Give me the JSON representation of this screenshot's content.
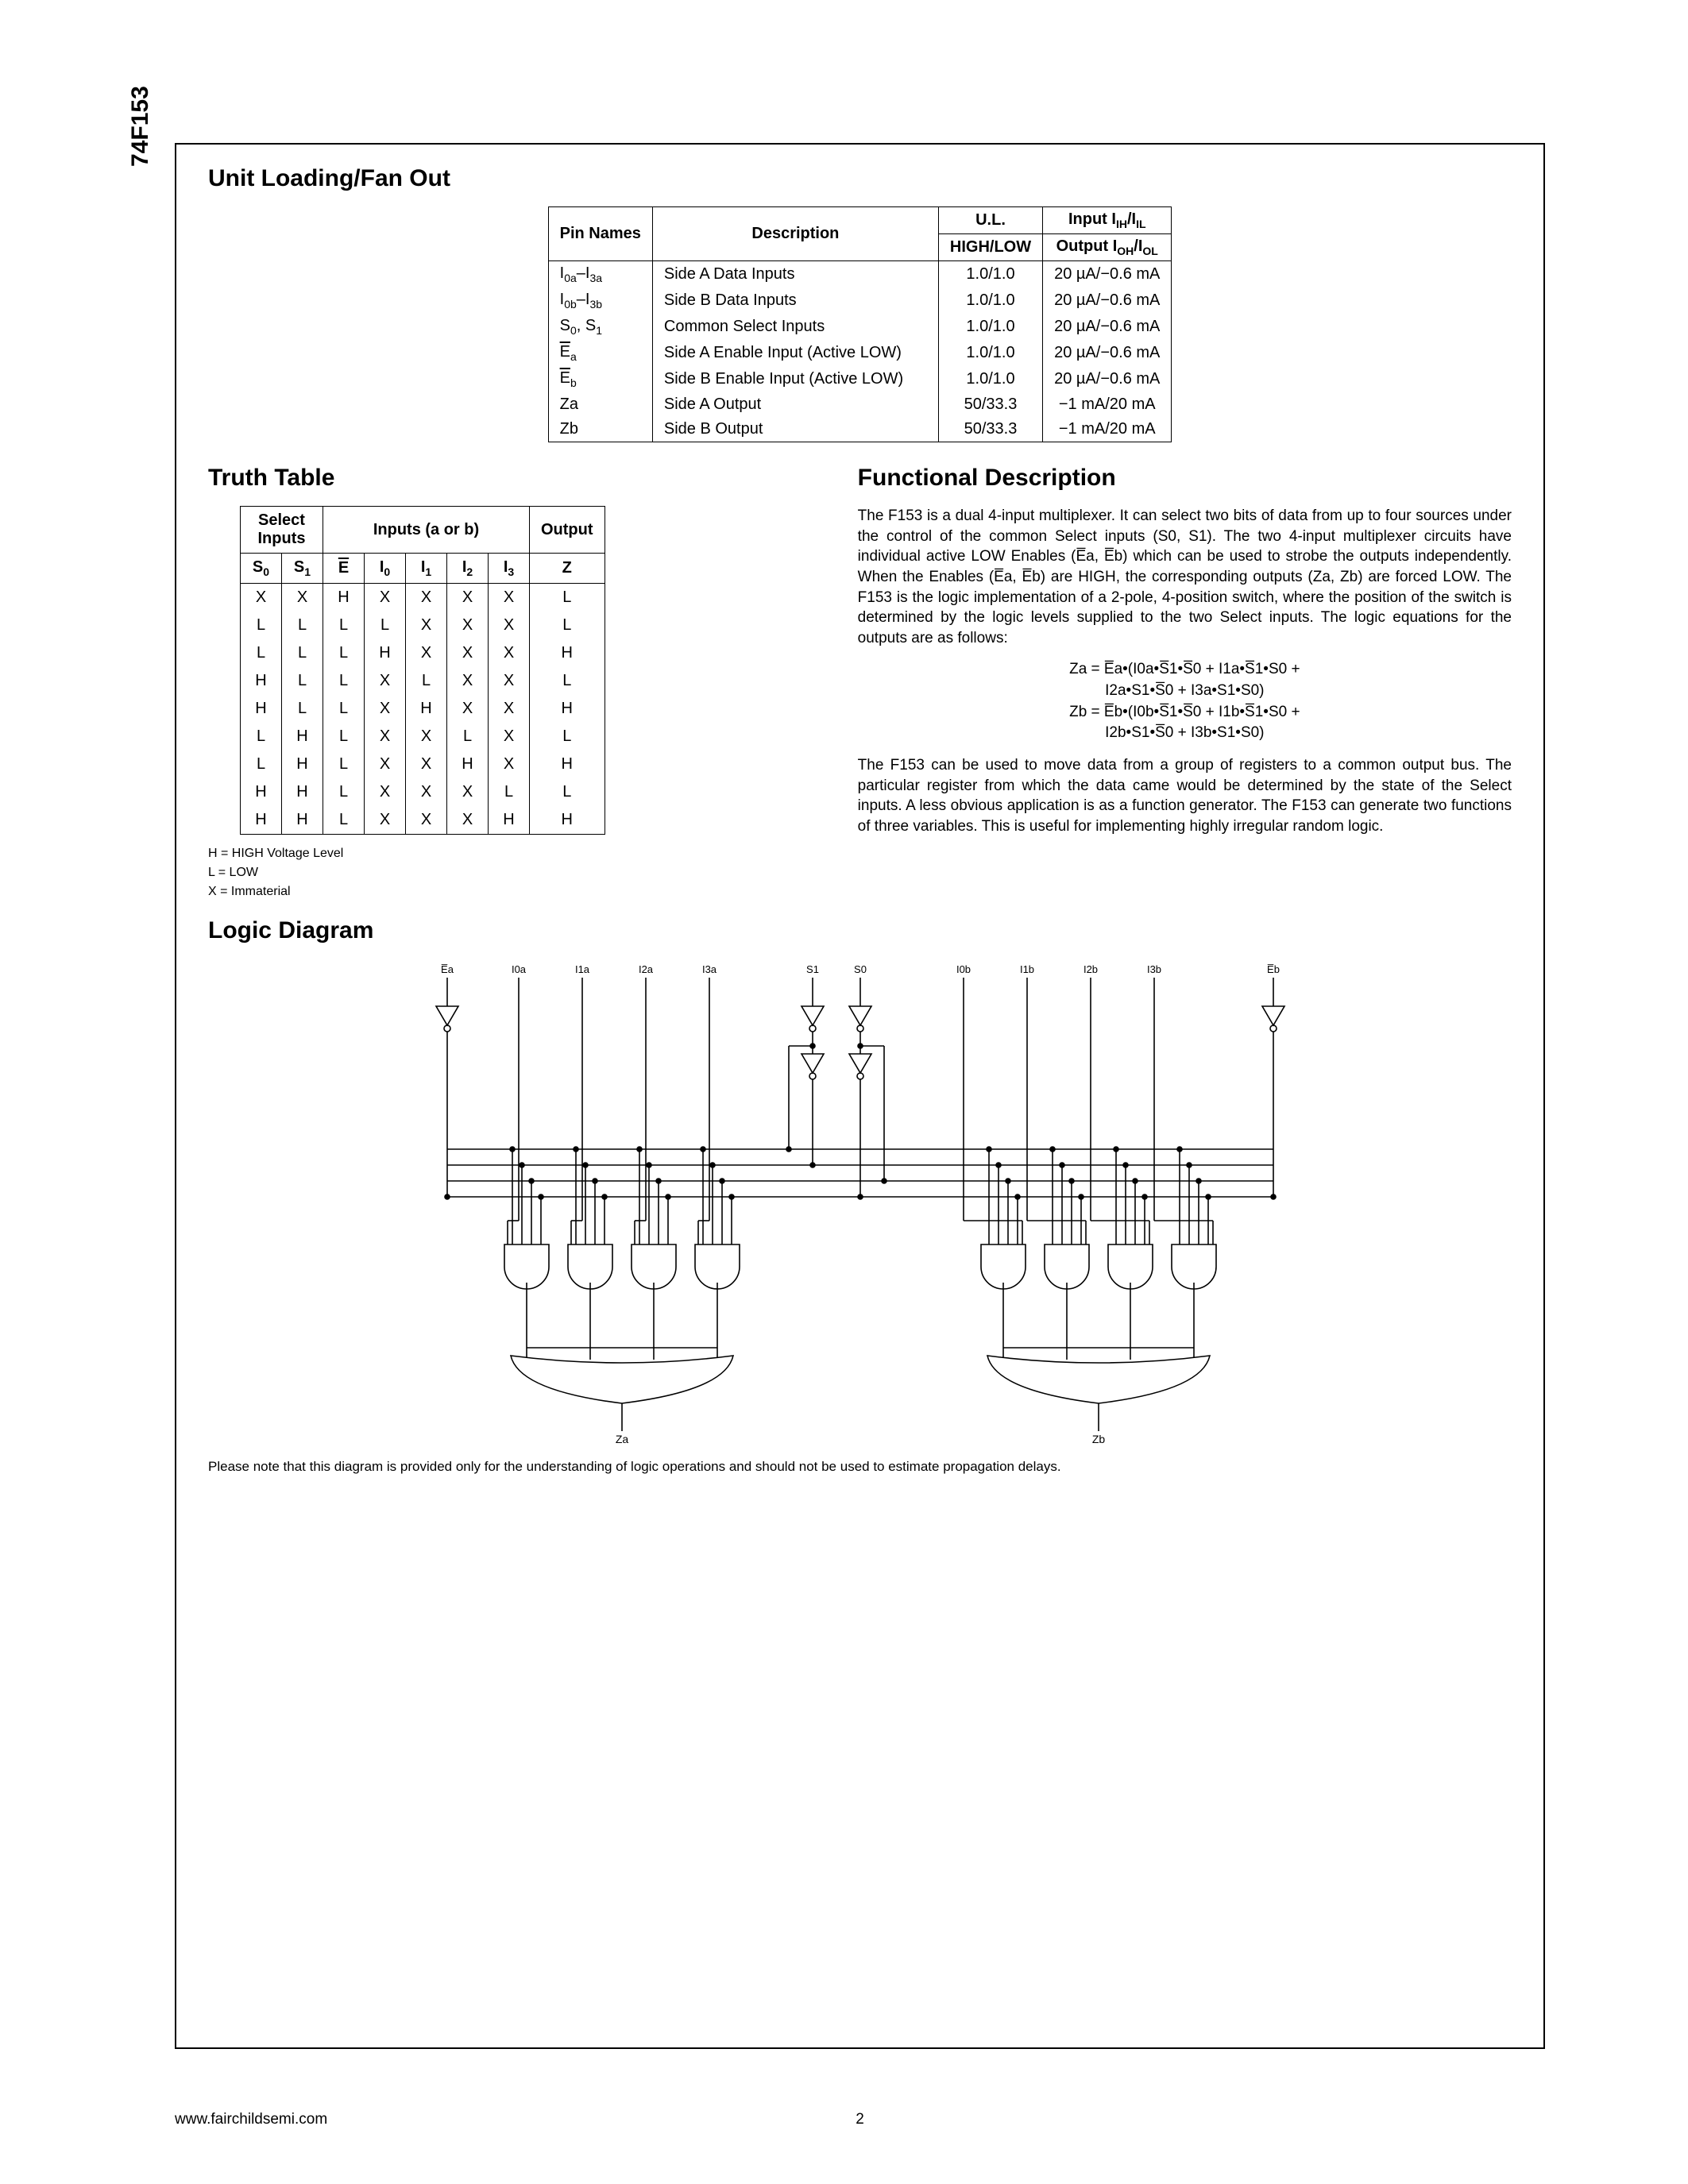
{
  "sideLabel": "74F153",
  "sections": {
    "loading": "Unit Loading/Fan Out",
    "truth": "Truth Table",
    "func": "Functional Description",
    "logic": "Logic Diagram"
  },
  "loadingTable": {
    "headers": {
      "pin": "Pin Names",
      "desc": "Description",
      "ul1": "U.L.",
      "ul2": "HIGH/LOW",
      "io1": "Input IIH/IIL",
      "io2": "Output IOH/IOL"
    },
    "rows": [
      {
        "pin": "I0a–I3a",
        "desc": "Side A Data Inputs",
        "ul": "1.0/1.0",
        "io": "20 µA/−0.6 mA"
      },
      {
        "pin": "I0b–I3b",
        "desc": "Side B Data Inputs",
        "ul": "1.0/1.0",
        "io": "20 µA/−0.6 mA"
      },
      {
        "pin": "S0, S1",
        "desc": "Common Select Inputs",
        "ul": "1.0/1.0",
        "io": "20 µA/−0.6 mA"
      },
      {
        "pin": "E̅a",
        "desc": "Side A Enable Input (Active LOW)",
        "ul": "1.0/1.0",
        "io": "20 µA/−0.6 mA"
      },
      {
        "pin": "E̅b",
        "desc": "Side B Enable Input (Active LOW)",
        "ul": "1.0/1.0",
        "io": "20 µA/−0.6 mA"
      },
      {
        "pin": "Za",
        "desc": "Side A Output",
        "ul": "50/33.3",
        "io": "−1 mA/20 mA"
      },
      {
        "pin": "Zb",
        "desc": "Side B Output",
        "ul": "50/33.3",
        "io": "−1 mA/20 mA"
      }
    ]
  },
  "truthTable": {
    "groupHeaders": {
      "select": "Select Inputs",
      "inputs": "Inputs (a or b)",
      "output": "Output"
    },
    "headers": [
      "S0",
      "S1",
      "E̅",
      "I0",
      "I1",
      "I2",
      "I3",
      "Z"
    ],
    "rows": [
      [
        "X",
        "X",
        "H",
        "X",
        "X",
        "X",
        "X",
        "L"
      ],
      [
        "L",
        "L",
        "L",
        "L",
        "X",
        "X",
        "X",
        "L"
      ],
      [
        "L",
        "L",
        "L",
        "H",
        "X",
        "X",
        "X",
        "H"
      ],
      [
        "H",
        "L",
        "L",
        "X",
        "L",
        "X",
        "X",
        "L"
      ],
      [
        "H",
        "L",
        "L",
        "X",
        "H",
        "X",
        "X",
        "H"
      ],
      [
        "L",
        "H",
        "L",
        "X",
        "X",
        "L",
        "X",
        "L"
      ],
      [
        "L",
        "H",
        "L",
        "X",
        "X",
        "H",
        "X",
        "H"
      ],
      [
        "H",
        "H",
        "L",
        "X",
        "X",
        "X",
        "L",
        "L"
      ],
      [
        "H",
        "H",
        "L",
        "X",
        "X",
        "X",
        "H",
        "H"
      ]
    ]
  },
  "legend": {
    "h": "H = HIGH Voltage Level",
    "l": "L = LOW",
    "x": "X = Immaterial"
  },
  "funcText": {
    "p1": "The F153 is a dual 4-input multiplexer. It can select two bits of data from up to four sources under the control of the common Select inputs (S0, S1). The two 4-input multiplexer circuits have individual active LOW Enables (E̅a, E̅b) which can be used to strobe the outputs independently. When the Enables (E̅a, E̅b) are HIGH, the corresponding outputs (Za, Zb) are forced LOW. The F153 is the logic implementation of a 2-pole, 4-position switch, where the position of the switch is determined by the logic levels supplied to the two Select inputs. The logic equations for the outputs are as follows:",
    "eq1a": "Za = E̅a•(I0a•S̅1•S̅0 + I1a•S̅1•S0 +",
    "eq1b": "I2a•S1•S̅0 + I3a•S1•S0)",
    "eq2a": "Zb = E̅b•(I0b•S̅1•S̅0 + I1b•S̅1•S0 +",
    "eq2b": "I2b•S1•S̅0 + I3b•S1•S0)",
    "p2": "The F153 can be used to move data from a group of registers to a common output bus. The particular register from which the data came would be determined by the state of the Select inputs. A less obvious application is as a function generator. The F153 can generate two functions of three variables. This is useful for implementing highly irregular random logic."
  },
  "diagramNote": "Please note that this diagram is provided only for the understanding of logic operations and should not be used to estimate propagation delays.",
  "diagram": {
    "topLabels": [
      "E̅a",
      "I0a",
      "I1a",
      "I2a",
      "I3a",
      "S1",
      "S0",
      "I0b",
      "I1b",
      "I2b",
      "I3b",
      "E̅b"
    ],
    "outA": "Za",
    "outB": "Zb"
  },
  "footer": {
    "url": "www.fairchildsemi.com",
    "page": "2"
  }
}
